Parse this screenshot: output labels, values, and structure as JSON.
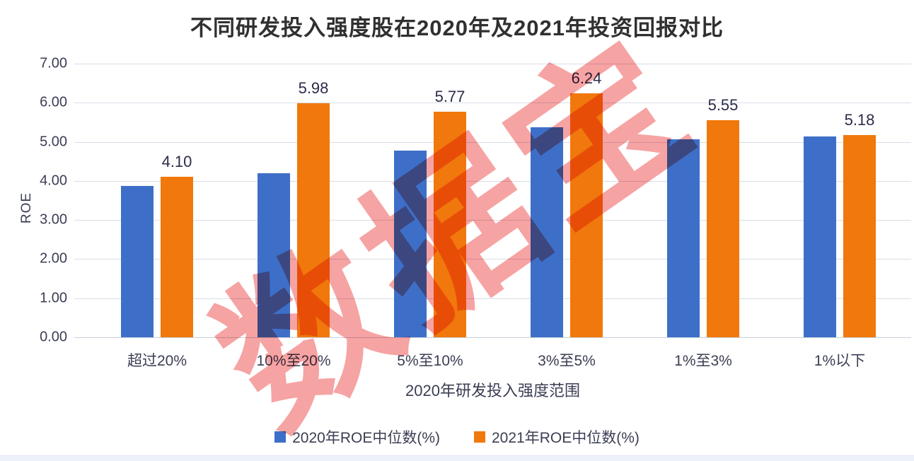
{
  "chart_data": {
    "type": "bar",
    "title": "不同研发投入强度股在2020年及2021年投资回报对比",
    "categories": [
      "超过20%",
      "10%至20%",
      "5%至10%",
      "3%至5%",
      "1%至3%",
      "1%以下"
    ],
    "series": [
      {
        "name": "2020年ROE中位数(%)",
        "color": "#3e6fc8",
        "values": [
          3.87,
          4.19,
          4.78,
          5.37,
          5.07,
          5.14
        ],
        "show_labels": false
      },
      {
        "name": "2021年ROE中位数(%)",
        "color": "#f1780c",
        "values": [
          4.1,
          5.98,
          5.77,
          6.24,
          5.55,
          5.18
        ],
        "show_labels": true,
        "data_labels": [
          "4.10",
          "5.98",
          "5.77",
          "6.24",
          "5.55",
          "5.18"
        ]
      }
    ],
    "xlabel": "2020年研发投入强度范围",
    "ylabel": "ROE",
    "ylim": [
      0,
      7
    ],
    "ytick_labels": [
      "0.00",
      "1.00",
      "2.00",
      "3.00",
      "4.00",
      "5.00",
      "6.00",
      "7.00"
    ],
    "grid": true,
    "legend_position": "bottom"
  },
  "watermark": {
    "text": "数据宝",
    "color": "#f48f8f"
  }
}
